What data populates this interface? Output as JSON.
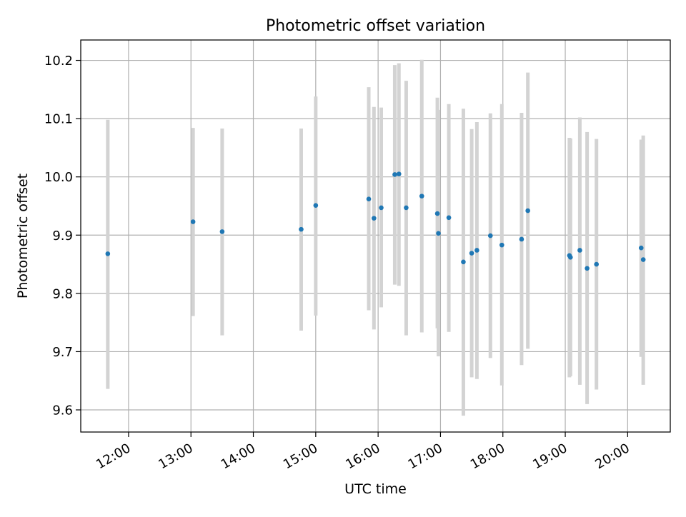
{
  "chart_data": {
    "type": "scatter",
    "title": "Photometric offset variation",
    "xlabel": "UTC time",
    "ylabel": "Photometric offset",
    "x_is_time": true,
    "xlim": [
      "11:14",
      "20:41"
    ],
    "ylim": [
      9.562,
      10.235
    ],
    "grid": true,
    "legend": "none",
    "xticks": [
      "12:00",
      "13:00",
      "14:00",
      "15:00",
      "16:00",
      "17:00",
      "18:00",
      "19:00",
      "20:00"
    ],
    "yticks": [
      "9.6",
      "9.7",
      "9.8",
      "9.9",
      "10.0",
      "10.1",
      "10.2"
    ],
    "colors": {
      "marker": "#1f77b4",
      "errorbar": "#d3d3d3",
      "grid": "#b0b0b0"
    },
    "points": [
      {
        "t": "11:40",
        "y": 9.868,
        "lo": 9.636,
        "hi": 10.098
      },
      {
        "t": "13:02",
        "y": 9.923,
        "lo": 9.761,
        "hi": 10.084
      },
      {
        "t": "13:30",
        "y": 9.906,
        "lo": 9.728,
        "hi": 10.083
      },
      {
        "t": "14:46",
        "y": 9.91,
        "lo": 9.736,
        "hi": 10.083
      },
      {
        "t": "15:00",
        "y": 9.951,
        "lo": 9.762,
        "hi": 10.138
      },
      {
        "t": "15:51",
        "y": 9.962,
        "lo": 9.771,
        "hi": 10.154
      },
      {
        "t": "15:56",
        "y": 9.929,
        "lo": 9.738,
        "hi": 10.12
      },
      {
        "t": "16:03",
        "y": 9.947,
        "lo": 9.776,
        "hi": 10.119
      },
      {
        "t": "16:16",
        "y": 10.004,
        "lo": 9.815,
        "hi": 10.192
      },
      {
        "t": "16:20",
        "y": 10.005,
        "lo": 9.813,
        "hi": 10.195
      },
      {
        "t": "16:27",
        "y": 9.947,
        "lo": 9.728,
        "hi": 10.165
      },
      {
        "t": "16:42",
        "y": 9.967,
        "lo": 9.733,
        "hi": 10.201
      },
      {
        "t": "16:57",
        "y": 9.937,
        "lo": 9.74,
        "hi": 10.136
      },
      {
        "t": "16:58",
        "y": 9.903,
        "lo": 9.692,
        "hi": 10.115
      },
      {
        "t": "17:08",
        "y": 9.93,
        "lo": 9.734,
        "hi": 10.125
      },
      {
        "t": "17:22",
        "y": 9.854,
        "lo": 9.59,
        "hi": 10.117
      },
      {
        "t": "17:30",
        "y": 9.869,
        "lo": 9.656,
        "hi": 10.082
      },
      {
        "t": "17:35",
        "y": 9.874,
        "lo": 9.653,
        "hi": 10.094
      },
      {
        "t": "17:48",
        "y": 9.899,
        "lo": 9.689,
        "hi": 10.109
      },
      {
        "t": "17:59",
        "y": 9.883,
        "lo": 9.642,
        "hi": 10.125
      },
      {
        "t": "18:18",
        "y": 9.893,
        "lo": 9.677,
        "hi": 10.11
      },
      {
        "t": "18:24",
        "y": 9.942,
        "lo": 9.705,
        "hi": 10.179
      },
      {
        "t": "19:04",
        "y": 9.865,
        "lo": 9.656,
        "hi": 10.067
      },
      {
        "t": "19:05",
        "y": 9.862,
        "lo": 9.658,
        "hi": 10.066
      },
      {
        "t": "19:14",
        "y": 9.874,
        "lo": 9.643,
        "hi": 10.102
      },
      {
        "t": "19:21",
        "y": 9.843,
        "lo": 9.61,
        "hi": 10.077
      },
      {
        "t": "19:30",
        "y": 9.85,
        "lo": 9.635,
        "hi": 10.065
      },
      {
        "t": "20:13",
        "y": 9.878,
        "lo": 9.691,
        "hi": 10.064
      },
      {
        "t": "20:15",
        "y": 9.858,
        "lo": 9.643,
        "hi": 10.071
      }
    ]
  }
}
